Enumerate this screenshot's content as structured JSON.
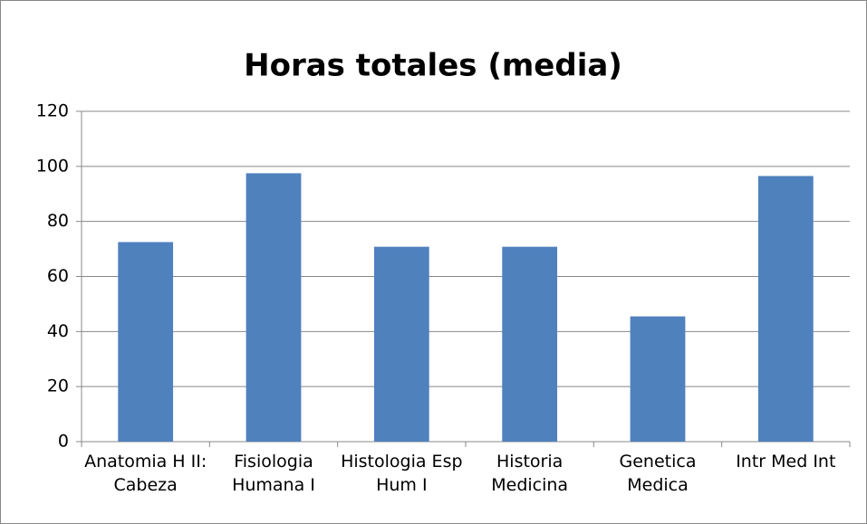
{
  "chart_data": {
    "type": "bar",
    "title": "Horas totales (media)",
    "categories": [
      "Anatomia H II: Cabeza",
      "Fisiologia Humana I",
      "Histologia Esp Hum I",
      "Historia Medicina",
      "Genetica Medica",
      "Intr Med Int"
    ],
    "values": [
      72.5,
      97.5,
      70.8,
      70.8,
      45.5,
      96.5
    ],
    "color": "#4f81bd",
    "ylim": [
      0,
      120
    ],
    "yticks": [
      0,
      20,
      40,
      60,
      80,
      100,
      120
    ],
    "grid": true
  }
}
